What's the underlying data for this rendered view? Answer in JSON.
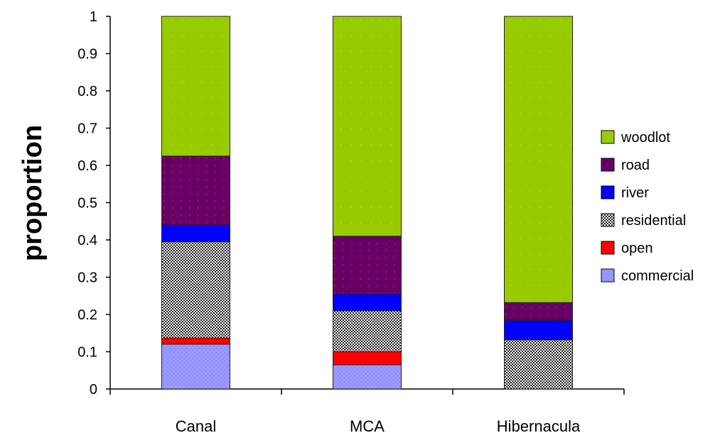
{
  "chart_data": {
    "type": "bar",
    "stacked": true,
    "title": "",
    "xlabel": "",
    "ylabel": "proportion",
    "ylim": [
      0,
      1
    ],
    "yticks": [
      "0",
      "0.1",
      "0.2",
      "0.3",
      "0.4",
      "0.5",
      "0.6",
      "0.7",
      "0.8",
      "0.9",
      "1"
    ],
    "categories": [
      "Canal",
      "MCA",
      "Hibernacula"
    ],
    "grid": false,
    "legend_position": "right",
    "series": [
      {
        "name": "commercial",
        "color": "#9999ff",
        "pattern": "dots-fine",
        "values": [
          0.12,
          0.065,
          0.0
        ]
      },
      {
        "name": "open",
        "color": "#ff0000",
        "pattern": "solid",
        "values": [
          0.017,
          0.035,
          0.0
        ]
      },
      {
        "name": "residential",
        "color": "#333333",
        "pattern": "checker",
        "values": [
          0.258,
          0.11,
          0.132
        ]
      },
      {
        "name": "river",
        "color": "#0000ff",
        "pattern": "solid",
        "values": [
          0.045,
          0.045,
          0.052
        ]
      },
      {
        "name": "road",
        "color": "#660066",
        "pattern": "red-dots",
        "values": [
          0.185,
          0.155,
          0.048
        ]
      },
      {
        "name": "woodlot",
        "color": "#99cc00",
        "pattern": "dots-sparse",
        "values": [
          0.375,
          0.59,
          0.768
        ]
      }
    ],
    "legend_order": [
      "woodlot",
      "road",
      "river",
      "residential",
      "open",
      "commercial"
    ]
  }
}
